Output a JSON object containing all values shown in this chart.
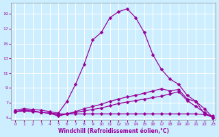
{
  "title": "",
  "xlabel": "Windchill (Refroidissement éolien,°C)",
  "ylabel": "",
  "bg_color": "#cceeff",
  "line_color": "#990099",
  "grid_color": "#ffffff",
  "xlim": [
    0,
    23
  ],
  "ylim": [
    5,
    20
  ],
  "xticks": [
    0,
    1,
    2,
    3,
    4,
    5,
    6,
    7,
    8,
    9,
    10,
    11,
    12,
    13,
    14,
    15,
    16,
    17,
    18,
    19,
    20,
    21,
    22,
    23
  ],
  "yticks": [
    5,
    7,
    9,
    11,
    13,
    15,
    17,
    19
  ],
  "curve1_x": [
    0,
    1,
    2,
    3,
    4,
    5,
    6,
    7,
    8,
    9,
    10,
    11,
    12,
    13,
    14,
    15,
    16,
    17,
    18,
    19,
    20,
    21,
    22,
    23
  ],
  "curve1_y": [
    6.0,
    6.2,
    6.1,
    6.0,
    5.8,
    5.6,
    7.2,
    9.5,
    12.2,
    15.5,
    16.5,
    18.5,
    19.3,
    19.7,
    18.5,
    16.5,
    13.5,
    11.5,
    10.2,
    9.5,
    8.0,
    7.2,
    5.5,
    5.0
  ],
  "curve2_x": [
    0,
    1,
    2,
    3,
    4,
    5,
    6,
    7,
    8,
    9,
    10,
    11,
    12,
    13,
    14,
    15,
    16,
    17,
    18,
    19,
    20,
    21,
    22,
    23
  ],
  "curve2_y": [
    5.8,
    5.9,
    5.8,
    5.7,
    5.6,
    5.5,
    5.5,
    5.5,
    5.5,
    5.5,
    5.5,
    5.5,
    5.5,
    5.5,
    5.5,
    5.5,
    5.5,
    5.5,
    5.5,
    5.5,
    5.5,
    5.5,
    5.4,
    5.2
  ],
  "curve3_x": [
    0,
    1,
    2,
    3,
    4,
    5,
    6,
    7,
    8,
    9,
    10,
    11,
    12,
    13,
    14,
    15,
    16,
    17,
    18,
    19,
    20,
    21,
    22,
    23
  ],
  "curve3_y": [
    5.8,
    6.0,
    5.9,
    5.7,
    5.6,
    5.3,
    5.5,
    5.7,
    5.9,
    6.1,
    6.3,
    6.6,
    6.9,
    7.1,
    7.3,
    7.5,
    7.7,
    7.9,
    8.2,
    8.5,
    7.3,
    6.5,
    5.7,
    5.0
  ],
  "curve4_x": [
    0,
    1,
    2,
    3,
    4,
    5,
    6,
    7,
    8,
    9,
    10,
    11,
    12,
    13,
    14,
    15,
    16,
    17,
    18,
    19,
    20,
    21,
    22,
    23
  ],
  "curve4_y": [
    5.8,
    6.0,
    5.9,
    5.7,
    5.6,
    5.2,
    5.5,
    5.8,
    6.2,
    6.5,
    6.8,
    7.2,
    7.5,
    7.8,
    8.0,
    8.3,
    8.6,
    8.9,
    8.6,
    8.8,
    7.5,
    7.2,
    6.2,
    5.0
  ]
}
